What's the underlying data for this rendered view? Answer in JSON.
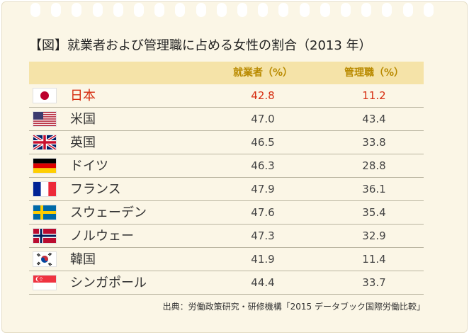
{
  "chart_data": {
    "type": "table",
    "title": "【図】就業者および管理職に占める女性の割合（2013 年）",
    "columns": [
      "就業者（%）",
      "管理職（%）"
    ],
    "rows": [
      {
        "country": "日本",
        "flag": "japan-flag",
        "worker": "42.8",
        "manager": "11.2",
        "highlight": true
      },
      {
        "country": "米国",
        "flag": "usa-flag",
        "worker": "47.0",
        "manager": "43.4"
      },
      {
        "country": "英国",
        "flag": "uk-flag",
        "worker": "46.5",
        "manager": "33.8"
      },
      {
        "country": "ドイツ",
        "flag": "germany-flag",
        "worker": "46.3",
        "manager": "28.8"
      },
      {
        "country": "フランス",
        "flag": "france-flag",
        "worker": "47.9",
        "manager": "36.1"
      },
      {
        "country": "スウェーデン",
        "flag": "sweden-flag",
        "worker": "47.6",
        "manager": "35.4"
      },
      {
        "country": "ノルウェー",
        "flag": "norway-flag",
        "worker": "47.3",
        "manager": "32.9"
      },
      {
        "country": "韓国",
        "flag": "korea-flag",
        "worker": "41.9",
        "manager": "11.4"
      },
      {
        "country": "シンガポール",
        "flag": "singapore-flag",
        "worker": "44.4",
        "manager": "33.7"
      }
    ],
    "source": "出典：労働政策研究・研修機構「2015 データブック国際労働比較」"
  },
  "colors": {
    "background": "#fbf6e6",
    "header_band": "#f5e3a8",
    "header_text": "#b98a00",
    "highlight_text": "#d62d10"
  }
}
